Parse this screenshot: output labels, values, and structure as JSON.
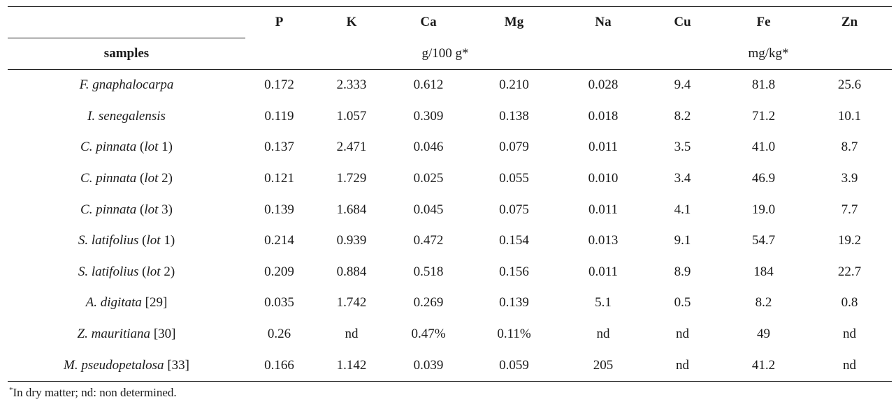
{
  "columns": [
    "P",
    "K",
    "Ca",
    "Mg",
    "Na",
    "Cu",
    "Fe",
    "Zn"
  ],
  "samples_header": "samples",
  "unit_groups": [
    {
      "label": "g/100 g*",
      "span": 5
    },
    {
      "label": "mg/kg*",
      "span": 3
    }
  ],
  "rows": [
    {
      "name": "F. gnaphalocarpa",
      "suffix_pre": "",
      "suffix_lot": "",
      "suffix_post": "",
      "values": [
        "0.172",
        "2.333",
        "0.612",
        "0.210",
        "0.028",
        "9.4",
        "81.8",
        "25.6"
      ]
    },
    {
      "name": "I. senegalensis",
      "suffix_pre": "",
      "suffix_lot": "",
      "suffix_post": "",
      "values": [
        "0.119",
        "1.057",
        "0.309",
        "0.138",
        "0.018",
        "8.2",
        "71.2",
        "10.1"
      ]
    },
    {
      "name": "C. pinnata",
      "suffix_pre": " (",
      "suffix_lot": "lot",
      "suffix_post": " 1)",
      "values": [
        "0.137",
        "2.471",
        "0.046",
        "0.079",
        "0.011",
        "3.5",
        "41.0",
        "8.7"
      ]
    },
    {
      "name": "C. pinnata",
      "suffix_pre": " (",
      "suffix_lot": "lot",
      "suffix_post": " 2)",
      "values": [
        "0.121",
        "1.729",
        "0.025",
        "0.055",
        "0.010",
        "3.4",
        "46.9",
        "3.9"
      ]
    },
    {
      "name": "C. pinnata",
      "suffix_pre": " (",
      "suffix_lot": "lot",
      "suffix_post": " 3)",
      "values": [
        "0.139",
        "1.684",
        "0.045",
        "0.075",
        "0.011",
        "4.1",
        "19.0",
        "7.7"
      ]
    },
    {
      "name": "S. latifolius",
      "suffix_pre": " (",
      "suffix_lot": "lot",
      "suffix_post": " 1)",
      "values": [
        "0.214",
        "0.939",
        "0.472",
        "0.154",
        "0.013",
        "9.1",
        "54.7",
        "19.2"
      ]
    },
    {
      "name": "S. latifolius",
      "suffix_pre": " (",
      "suffix_lot": "lot",
      "suffix_post": " 2)",
      "values": [
        "0.209",
        "0.884",
        "0.518",
        "0.156",
        "0.011",
        "8.9",
        "184",
        "22.7"
      ]
    },
    {
      "name": "A. digitata",
      "suffix_pre": " [29]",
      "suffix_lot": "",
      "suffix_post": "",
      "values": [
        "0.035",
        "1.742",
        "0.269",
        "0.139",
        "5.1",
        "0.5",
        "8.2",
        "0.8"
      ]
    },
    {
      "name": "Z. mauritiana",
      "suffix_pre": " [30]",
      "suffix_lot": "",
      "suffix_post": "",
      "values": [
        "0.26",
        "nd",
        "0.47%",
        "0.11%",
        "nd",
        "nd",
        "49",
        "nd"
      ]
    },
    {
      "name": "M. pseudopetalosa",
      "suffix_pre": " [33]",
      "suffix_lot": "",
      "suffix_post": "",
      "values": [
        "0.166",
        "1.142",
        "0.039",
        "0.059",
        "205",
        "nd",
        "41.2",
        "nd"
      ]
    }
  ],
  "footnote": {
    "marker": "*",
    "text": "In dry matter; nd: non determined."
  }
}
